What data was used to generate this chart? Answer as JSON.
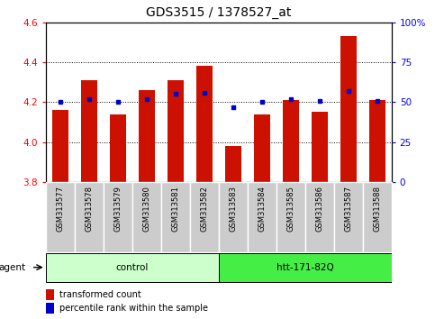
{
  "title": "GDS3515 / 1378527_at",
  "samples": [
    "GSM313577",
    "GSM313578",
    "GSM313579",
    "GSM313580",
    "GSM313581",
    "GSM313582",
    "GSM313583",
    "GSM313584",
    "GSM313585",
    "GSM313586",
    "GSM313587",
    "GSM313588"
  ],
  "red_values": [
    4.16,
    4.31,
    4.14,
    4.26,
    4.31,
    4.38,
    3.98,
    4.14,
    4.21,
    4.15,
    4.53,
    4.21
  ],
  "blue_pct": [
    50,
    52,
    50,
    52,
    55,
    56,
    47,
    50,
    52,
    51,
    57,
    51
  ],
  "ylim_left": [
    3.8,
    4.6
  ],
  "ylim_right": [
    0,
    100
  ],
  "yticks_left": [
    3.8,
    4.0,
    4.2,
    4.4,
    4.6
  ],
  "yticks_right": [
    0,
    25,
    50,
    75,
    100
  ],
  "groups": [
    {
      "label": "control",
      "start": 0,
      "end": 5,
      "color": "#ccffcc"
    },
    {
      "label": "htt-171-82Q",
      "start": 6,
      "end": 11,
      "color": "#44ee44"
    }
  ],
  "agent_label": "agent",
  "bar_color": "#cc1100",
  "dot_color": "#0000cc",
  "bar_bottom": 3.8,
  "bg_plot": "#ffffff",
  "bg_sample": "#cccccc",
  "legend_items": [
    "transformed count",
    "percentile rank within the sample"
  ],
  "dotted_line_color": "#000000",
  "title_fontsize": 10,
  "tick_fontsize": 7.5,
  "sample_fontsize": 6.0
}
